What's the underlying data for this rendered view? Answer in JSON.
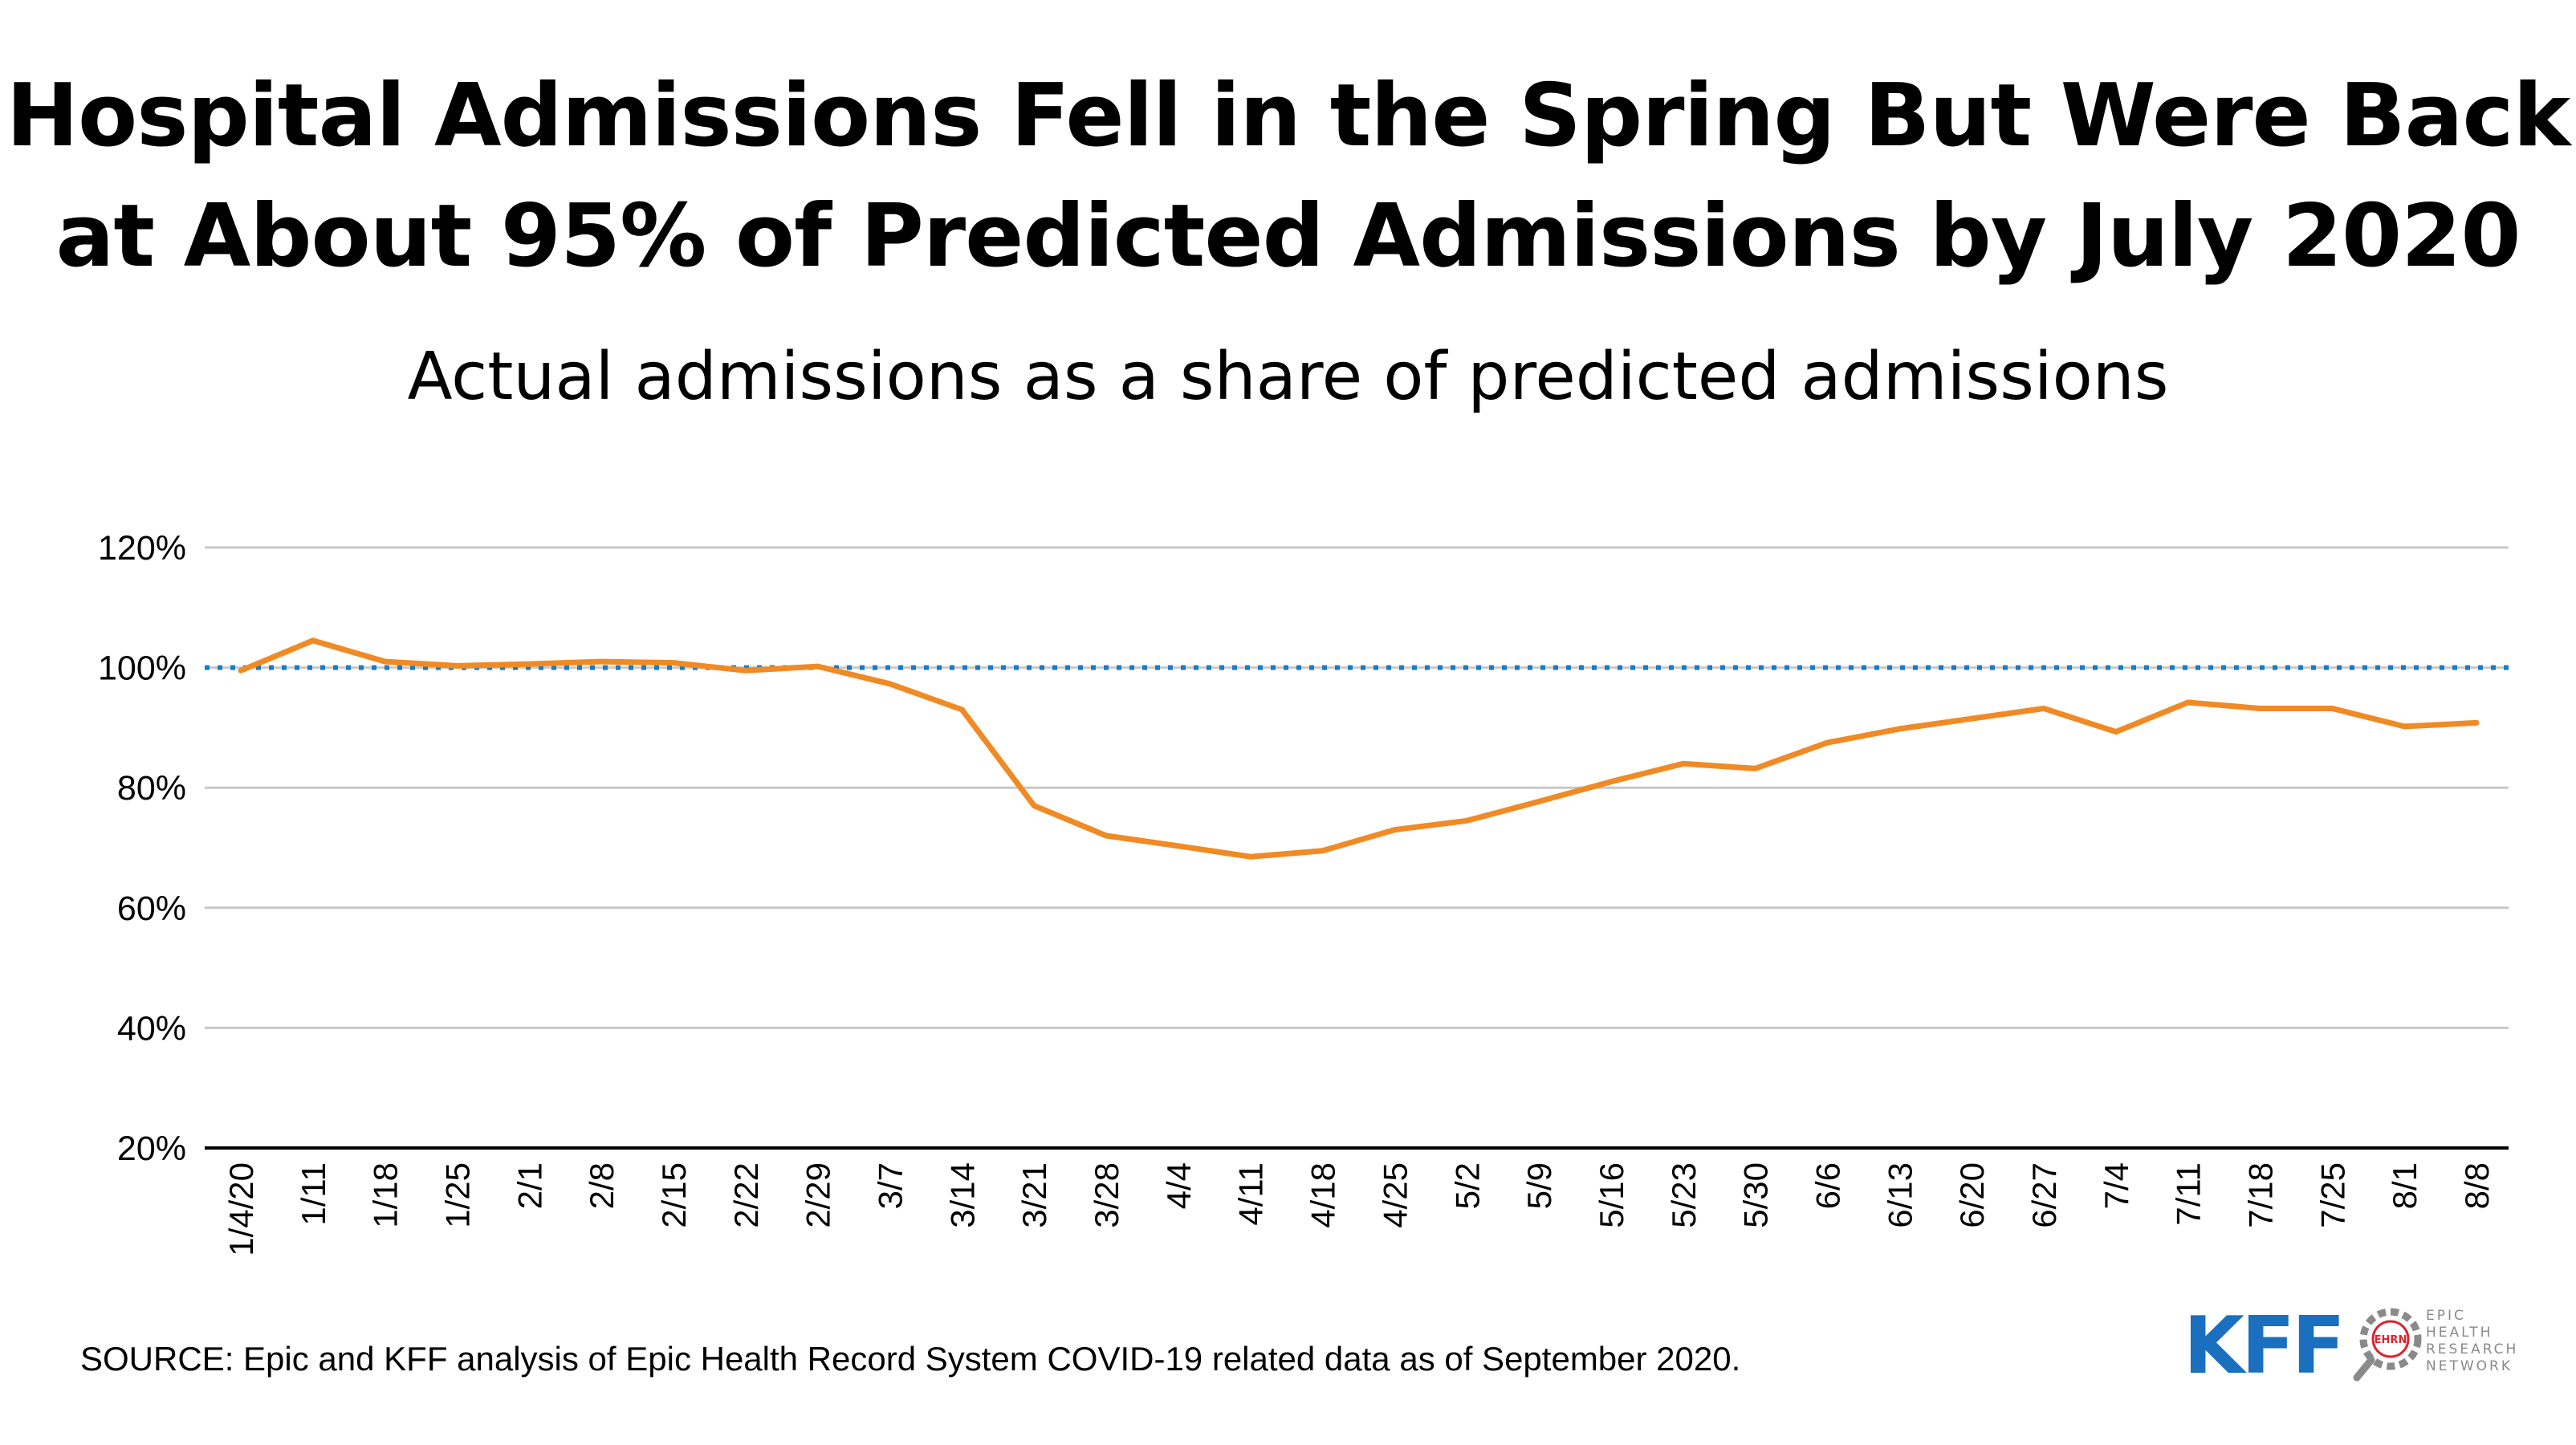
{
  "title_lines": [
    "Hospital Admissions Fell in the Spring But Were Back",
    "at About 95% of Predicted Admissions by July 2020"
  ],
  "subtitle": "Actual admissions as a share of predicted admissions",
  "source": "SOURCE: Epic and KFF analysis of Epic Health Record System COVID-19 related data as of September 2020.",
  "logos": {
    "kff": "KFF",
    "epic_badge": "EHRN",
    "epic_text": [
      "EPIC",
      "HEALTH",
      "RESEARCH",
      "NETWORK"
    ]
  },
  "colors": {
    "line": "#F08A24",
    "reference": "#1B7CC1",
    "grid": "#C8C8C8",
    "axis": "#000000",
    "kff_blue": "#1A6FBE",
    "epic_red": "#D8262F",
    "epic_gray": "#8A8A8A"
  },
  "chart_data": {
    "type": "line",
    "title": "Hospital Admissions Fell in the Spring But Were Back at About 95% of Predicted Admissions by July 2020",
    "subtitle": "Actual admissions as a share of predicted admissions",
    "ylim": [
      20,
      120
    ],
    "yticks": [
      20,
      40,
      60,
      80,
      100,
      120
    ],
    "ytick_labels": [
      "20%",
      "40%",
      "60%",
      "80%",
      "100%",
      "120%"
    ],
    "y_unit": "%",
    "grid": true,
    "reference_line": {
      "value": 100,
      "style": "dotted"
    },
    "categories": [
      "1/4/20",
      "1/11",
      "1/18",
      "1/25",
      "2/1",
      "2/8",
      "2/15",
      "2/22",
      "2/29",
      "3/7",
      "3/14",
      "3/21",
      "3/28",
      "4/4",
      "4/11",
      "4/18",
      "4/25",
      "5/2",
      "5/9",
      "5/16",
      "5/23",
      "5/30",
      "6/6",
      "6/13",
      "6/20",
      "6/27",
      "7/4",
      "7/11",
      "7/18",
      "7/25",
      "8/1",
      "8/8"
    ],
    "series": [
      {
        "values": [
          99.5,
          104.5,
          101,
          100.3,
          100.6,
          101,
          100.8,
          99.5,
          100.2,
          97.3,
          93,
          77,
          72,
          70.3,
          68.5,
          69.5,
          73,
          74.5,
          77.7,
          81,
          84,
          83.2,
          87.5,
          89.8,
          91.5,
          93.2,
          89.3,
          94.2,
          93.2,
          93.2,
          90.2,
          90.8
        ]
      }
    ]
  }
}
